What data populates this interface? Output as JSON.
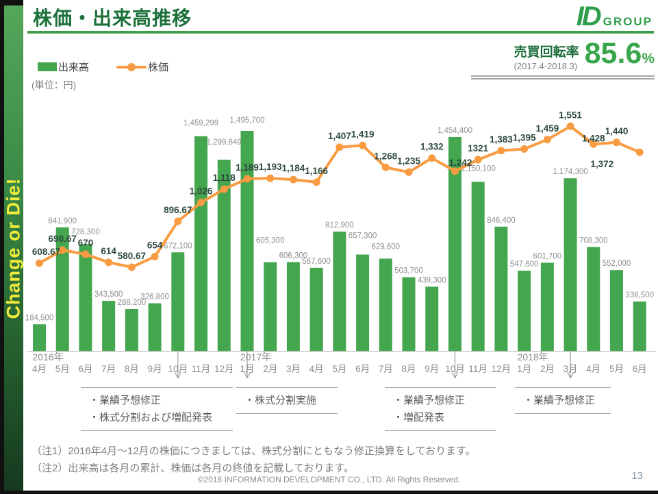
{
  "header": {
    "title": "株価・出来高推移",
    "logo_id": "ID",
    "logo_group": "GROUP"
  },
  "sidebar": {
    "slogan": "Change or Die!"
  },
  "legend": {
    "volume_label": "出来高",
    "price_label": "株価",
    "unit": "(単位：円)"
  },
  "kpi": {
    "label": "売買回転率",
    "period": "(2017.4-2018.3)",
    "value": "85.6",
    "unit": "%"
  },
  "chart_data": {
    "type": "combo",
    "categories": [
      "4月",
      "5月",
      "6月",
      "7月",
      "8月",
      "9月",
      "10月",
      "11月",
      "12月",
      "1月",
      "2月",
      "3月",
      "4月",
      "5月",
      "6月",
      "7月",
      "8月",
      "9月",
      "10月",
      "11月",
      "12月",
      "1月",
      "2月",
      "3月",
      "4月",
      "5月",
      "6月"
    ],
    "year_markers": [
      {
        "index": 0,
        "label": "2016年"
      },
      {
        "index": 9,
        "label": "2017年"
      },
      {
        "index": 21,
        "label": "2018年"
      }
    ],
    "series": [
      {
        "name": "出来高",
        "type": "bar",
        "values": [
          184500,
          841900,
          728300,
          343500,
          288200,
          326800,
          672100,
          1459299,
          1299649,
          1495700,
          605300,
          606300,
          567600,
          812900,
          657300,
          629600,
          503700,
          439300,
          1454400,
          1150100,
          846400,
          547600,
          601700,
          1174300,
          708300,
          552000,
          338500
        ],
        "labels": [
          "184,500",
          "841,900",
          "728,300",
          "343,500",
          "288,200",
          "326,800",
          "672,100",
          "1,459,299",
          "1,299,649",
          "1,495,700",
          "605,300",
          "606,300",
          "567,600",
          "812,900",
          "657,300",
          "629,600",
          "503,700",
          "439,300",
          "1,454,400",
          "1,150,100",
          "846,400",
          "547,600",
          "601,700",
          "1,174,300",
          "708,300",
          "552,000",
          "338,500"
        ]
      },
      {
        "name": "株価",
        "type": "line",
        "values": [
          608.67,
          698.67,
          670,
          614,
          580.67,
          654,
          896.67,
          1026,
          1118,
          1189,
          1193,
          1184,
          1166,
          1407,
          1419,
          1268,
          1235,
          1332,
          1242,
          1321,
          1383,
          1395,
          1459,
          1551,
          1428,
          1440,
          1372
        ],
        "labels": [
          "608.67",
          "698.67",
          "670",
          "614",
          "580.67",
          "654",
          "896.67",
          "1,026",
          "1,118",
          "1,189",
          "1,193",
          "1,184",
          "1,166",
          "1,407",
          "1,419",
          "1,268",
          "1,235",
          "1,332",
          "1,242",
          "1321",
          "1,383",
          "1,395",
          "1,459",
          "1,551",
          "1,428",
          "1,440",
          "1,372"
        ]
      }
    ],
    "events": [
      {
        "index": 6,
        "lines": [
          "・業績予想修正",
          "・株式分割および増配発表"
        ]
      },
      {
        "index": 9,
        "lines": [
          "・株式分割実施"
        ]
      },
      {
        "index": 18,
        "lines": [
          "・業績予想修正",
          "・増配発表"
        ]
      },
      {
        "index": 23,
        "lines": [
          "・業績予想修正"
        ]
      }
    ],
    "colors": {
      "bar": "#44a64e",
      "line": "#f89b42",
      "bar_label": "#8f8f8f",
      "line_label": "#2d4a3e",
      "axis": "#cccccc",
      "tick_label": "#8b8b8b",
      "arrow": "#9a9a9a"
    },
    "ylim_volume": [
      0,
      1600000
    ],
    "ylim_price": [
      500,
      1600
    ],
    "grid": false,
    "legend_position": "top-left"
  },
  "notes": [
    "（注1）2016年4月～12月の株価につきましては、株式分割にともなう修正換算をしております。",
    "（注2）出来高は各月の累計、株価は各月の終値を記載しております。"
  ],
  "footer": {
    "copyright": "©2018 INFORMATION DEVELOPMENT CO., LTD. All Rights Reserved.",
    "page": "13"
  }
}
